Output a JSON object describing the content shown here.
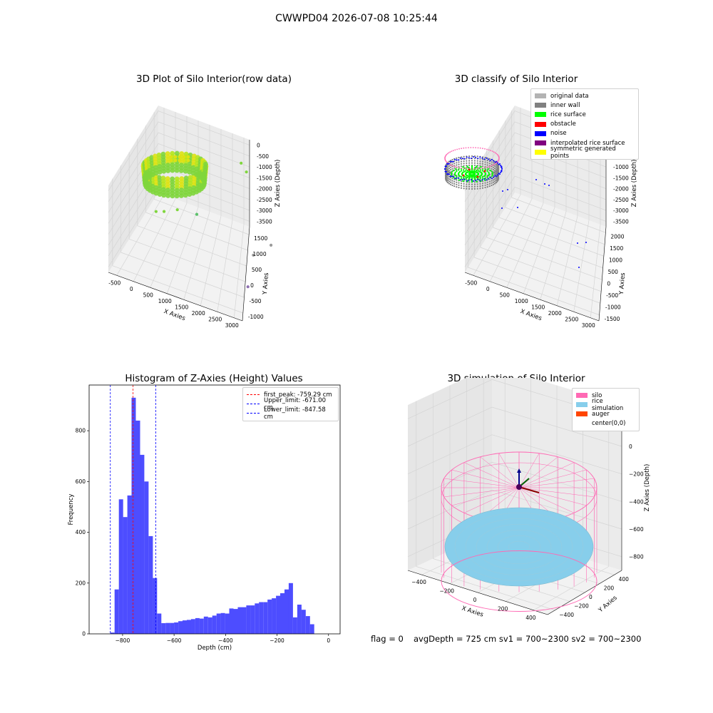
{
  "figure_title": "CWWPD04 2026-07-08 10:25:44",
  "footer": {
    "flag": "flag = 0",
    "stats": "avgDepth = 725 cm  sv1 = 700~2300  sv2 = 700~2300"
  },
  "colors": {
    "raw_points": [
      "#7fd63c",
      "#b6e51e",
      "#dde214",
      "#5cc16b",
      "#8e6fb0",
      "#9a9a9a"
    ],
    "original_data": "#b3b3b3",
    "inner_wall": "#808080",
    "rice_surface": "#00ff00",
    "obstacle": "#ff0000",
    "noise": "#0000ff",
    "interpolated_rice_surface": "#800080",
    "symmetric_generated_points": "#ffff00",
    "histogram_bars": "#4d4dff",
    "first_peak_line": "#ff0000",
    "limit_lines": "#0000ff",
    "silo": "#ff69b4",
    "rice_simulation": "#87ceeb",
    "auger": "#ff4500"
  },
  "chart_data": [
    {
      "type": "scatter",
      "projection": "3d",
      "title": "3D Plot of Silo Interior(row data)",
      "xlabel": "X Axies",
      "ylabel": "Y Axies",
      "zlabel": "Z Axies (Depth)",
      "xticks": [
        "-500",
        "0",
        "500",
        "1000",
        "1500",
        "2000",
        "2500",
        "3000"
      ],
      "yticks": [
        "-1000",
        "-500",
        "0",
        "500",
        "1000",
        "1500"
      ],
      "zticks": [
        "0",
        "-500",
        "-1000",
        "-1500",
        "-2000",
        "-2500",
        "-3000",
        "-3500"
      ],
      "xlim": [
        -600,
        3200
      ],
      "ylim": [
        -1100,
        1700
      ],
      "zlim": [
        -3700,
        100
      ],
      "grid": true,
      "description_points": [
        {
          "x": 550,
          "y": -700,
          "z": -900
        },
        {
          "x": 700,
          "y": -550,
          "z": -1000
        },
        {
          "x": 900,
          "y": -200,
          "z": -1250
        },
        {
          "x": 1300,
          "y": 100,
          "z": -1600
        },
        {
          "x": 1900,
          "y": 1400,
          "z": -650
        },
        {
          "x": 2100,
          "y": 1300,
          "z": -800
        },
        {
          "x": 2700,
          "y": 500,
          "z": -3100
        },
        {
          "x": 3000,
          "y": 900,
          "z": -3000
        },
        {
          "x": 2900,
          "y": -200,
          "z": -3500
        }
      ]
    },
    {
      "type": "scatter",
      "projection": "3d",
      "title": "3D classify of Silo Interior",
      "xlabel": "X Axies",
      "ylabel": "Y Axies",
      "zlabel": "Z Axies (Depth)",
      "xticks": [
        "-500",
        "0",
        "500",
        "1000",
        "1500",
        "2000",
        "2500",
        "3000"
      ],
      "yticks": [
        "-1500",
        "-1000",
        "-500",
        "0",
        "500",
        "1000",
        "1500",
        "2000"
      ],
      "zticks": [
        "0",
        "-500",
        "-1000",
        "-1500",
        "-2000",
        "-2500",
        "-3000",
        "-3500"
      ],
      "xlim": [
        -600,
        3200
      ],
      "ylim": [
        -1600,
        2200
      ],
      "zlim": [
        -3700,
        100
      ],
      "grid": true,
      "legend": [
        {
          "label": "original data",
          "color": "#b3b3b3"
        },
        {
          "label": "inner wall",
          "color": "#808080"
        },
        {
          "label": "rice surface",
          "color": "#00ff00"
        },
        {
          "label": "obstacle",
          "color": "#ff0000"
        },
        {
          "label": "noise",
          "color": "#0000ff"
        },
        {
          "label": "interpolated rice surface",
          "color": "#800080"
        },
        {
          "label": "symmetric generated points",
          "color": "#ffff00"
        }
      ],
      "legend_loc": "upper right"
    },
    {
      "type": "bar",
      "title": "Histogram of Z-Axies (Height) Values",
      "xlabel": "Depth (cm)",
      "ylabel": "Frequency",
      "xlim": [
        -930,
        45
      ],
      "ylim": [
        0,
        980
      ],
      "xticks": [
        -800,
        -600,
        -400,
        -200,
        0
      ],
      "yticks": [
        0,
        200,
        400,
        600,
        800
      ],
      "bin_width": 16.5,
      "bin_start": -847.6,
      "values": [
        5,
        175,
        530,
        460,
        545,
        930,
        840,
        705,
        600,
        385,
        220,
        80,
        42,
        43,
        43,
        45,
        50,
        53,
        55,
        58,
        62,
        60,
        68,
        65,
        72,
        80,
        82,
        80,
        100,
        98,
        105,
        105,
        112,
        112,
        120,
        125,
        125,
        135,
        140,
        150,
        160,
        175,
        200,
        65,
        115,
        95,
        70,
        38
      ],
      "vlines": [
        {
          "x": -759.29,
          "label": "first_peak: -759.29 cm",
          "color": "#ff0000"
        },
        {
          "x": -671.0,
          "label": "Upper_limit: -671.00 cm",
          "color": "#0000ff"
        },
        {
          "x": -847.58,
          "label": "Lower_limit: -847.58 cm",
          "color": "#0000ff"
        }
      ],
      "legend_loc": "upper right"
    },
    {
      "type": "surface",
      "projection": "3d",
      "title": "3D simulation of Silo Interior",
      "xlabel": "X Axies",
      "ylabel": "Y Axies",
      "zlabel": "Z Axies (Depth)",
      "xticks": [
        "-400",
        "-200",
        "0",
        "200",
        "400"
      ],
      "yticks": [
        "-400",
        "-200",
        "0",
        "200",
        "400"
      ],
      "zticks": [
        "200",
        "0",
        "-200",
        "-400",
        "-600",
        "-800"
      ],
      "xlim": [
        -550,
        550
      ],
      "ylim": [
        -550,
        550
      ],
      "zlim": [
        -850,
        350
      ],
      "grid": true,
      "silo_radius": 500,
      "silo_top": 80,
      "silo_bottom": -780,
      "rice_depth": -725,
      "legend": [
        {
          "label": "silo",
          "color": "#ff69b4"
        },
        {
          "label": "rice simulation",
          "color": "#87ceeb"
        },
        {
          "label": "auger",
          "color": "#ff4500"
        },
        {
          "label": "center(0,0)",
          "color": ""
        }
      ],
      "legend_loc": "upper right"
    }
  ]
}
